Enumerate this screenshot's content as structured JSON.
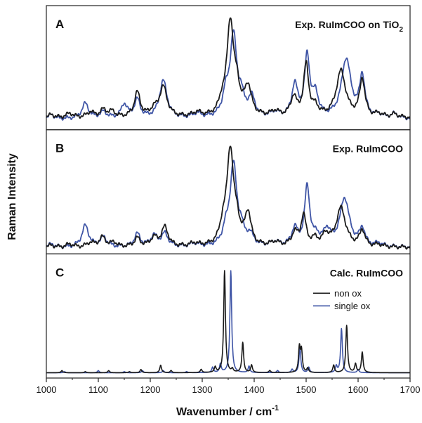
{
  "chart_data": {
    "type": "line",
    "xlabel": "Wavenumber / cm",
    "xlabel_superscript": "-1",
    "ylabel": "Raman Intensity",
    "xlim": [
      1000,
      1700
    ],
    "xticks": [
      1000,
      1100,
      1200,
      1300,
      1400,
      1500,
      1600,
      1700
    ],
    "colors": {
      "non_ox": "#1a1a1a",
      "single_ox": "#3f55a6"
    },
    "legend": {
      "placement": "panel C top-right",
      "entries": [
        "non ox",
        "single ox"
      ]
    },
    "panels": [
      {
        "letter": "A",
        "title": "Exp. RuImCOO on TiO",
        "title_subscript": "2",
        "kind": "experimental",
        "ylim": [
          0,
          1
        ],
        "series": [
          {
            "key": "non_ox",
            "baseline": 0.07,
            "peaks": [
              [
                1010,
                0.03,
                6
              ],
              [
                1045,
                0.04,
                8
              ],
              [
                1085,
                0.05,
                8
              ],
              [
                1110,
                0.07,
                8
              ],
              [
                1127,
                0.05,
                7
              ],
              [
                1175,
                0.23,
                7
              ],
              [
                1207,
                0.06,
                8
              ],
              [
                1225,
                0.28,
                9
              ],
              [
                1290,
                0.04,
                10
              ],
              [
                1338,
                0.1,
                7
              ],
              [
                1354,
                0.88,
                8
              ],
              [
                1367,
                0.2,
                6
              ],
              [
                1388,
                0.27,
                8
              ],
              [
                1440,
                0.05,
                10
              ],
              [
                1476,
                0.18,
                7
              ],
              [
                1500,
                0.48,
                6
              ],
              [
                1518,
                0.08,
                7
              ],
              [
                1567,
                0.43,
                11
              ],
              [
                1608,
                0.35,
                6
              ],
              [
                1640,
                0.03,
                8
              ],
              [
                1670,
                0.03,
                8
              ]
            ]
          },
          {
            "key": "single_ox",
            "baseline": 0.06,
            "peaks": [
              [
                1010,
                0.04,
                6
              ],
              [
                1075,
                0.14,
                8
              ],
              [
                1110,
                0.06,
                8
              ],
              [
                1150,
                0.13,
                7
              ],
              [
                1175,
                0.17,
                7
              ],
              [
                1225,
                0.35,
                9
              ],
              [
                1290,
                0.04,
                10
              ],
              [
                1345,
                0.18,
                7
              ],
              [
                1360,
                0.76,
                8
              ],
              [
                1375,
                0.15,
                6
              ],
              [
                1395,
                0.18,
                8
              ],
              [
                1440,
                0.05,
                10
              ],
              [
                1478,
                0.3,
                7
              ],
              [
                1502,
                0.56,
                6
              ],
              [
                1518,
                0.2,
                7
              ],
              [
                1577,
                0.55,
                11
              ],
              [
                1608,
                0.38,
                6
              ],
              [
                1640,
                0.03,
                8
              ],
              [
                1670,
                0.04,
                8
              ]
            ]
          }
        ]
      },
      {
        "letter": "B",
        "title": "Exp. RuImCOO",
        "title_subscript": "",
        "kind": "experimental",
        "ylim": [
          0,
          1
        ],
        "series": [
          {
            "key": "non_ox",
            "baseline": 0.02,
            "peaks": [
              [
                1010,
                0.02,
                6
              ],
              [
                1045,
                0.03,
                8
              ],
              [
                1085,
                0.04,
                8
              ],
              [
                1108,
                0.09,
                8
              ],
              [
                1130,
                0.04,
                7
              ],
              [
                1175,
                0.08,
                7
              ],
              [
                1207,
                0.08,
                8
              ],
              [
                1228,
                0.18,
                8
              ],
              [
                1285,
                0.03,
                10
              ],
              [
                1340,
                0.15,
                7
              ],
              [
                1354,
                0.89,
                8
              ],
              [
                1367,
                0.15,
                6
              ],
              [
                1388,
                0.3,
                7
              ],
              [
                1440,
                0.04,
                10
              ],
              [
                1478,
                0.12,
                7
              ],
              [
                1495,
                0.28,
                6
              ],
              [
                1517,
                0.06,
                7
              ],
              [
                1538,
                0.1,
                8
              ],
              [
                1567,
                0.36,
                11
              ],
              [
                1608,
                0.15,
                6
              ],
              [
                1640,
                0.02,
                8
              ]
            ]
          },
          {
            "key": "single_ox",
            "baseline": 0.02,
            "peaks": [
              [
                1010,
                0.03,
                6
              ],
              [
                1075,
                0.2,
                8
              ],
              [
                1110,
                0.09,
                8
              ],
              [
                1175,
                0.12,
                7
              ],
              [
                1207,
                0.1,
                8
              ],
              [
                1228,
                0.12,
                8
              ],
              [
                1285,
                0.03,
                10
              ],
              [
                1345,
                0.12,
                7
              ],
              [
                1360,
                0.76,
                8
              ],
              [
                1375,
                0.12,
                6
              ],
              [
                1392,
                0.1,
                8
              ],
              [
                1440,
                0.04,
                10
              ],
              [
                1478,
                0.16,
                7
              ],
              [
                1502,
                0.55,
                6
              ],
              [
                1520,
                0.08,
                7
              ],
              [
                1540,
                0.14,
                8
              ],
              [
                1574,
                0.45,
                11
              ],
              [
                1608,
                0.16,
                6
              ],
              [
                1640,
                0.03,
                8
              ]
            ]
          }
        ]
      },
      {
        "letter": "C",
        "title": "Calc. RuImCOO",
        "title_subscript": "",
        "kind": "calculated",
        "ylim": [
          0,
          1
        ],
        "series": [
          {
            "key": "non_ox",
            "name": "non ox",
            "baseline": 0.01,
            "peaks": [
              [
                1030,
                0.02,
                2
              ],
              [
                1075,
                0.01,
                2
              ],
              [
                1120,
                0.02,
                2
              ],
              [
                1160,
                0.01,
                2
              ],
              [
                1182,
                0.03,
                2
              ],
              [
                1220,
                0.07,
                2
              ],
              [
                1240,
                0.02,
                2
              ],
              [
                1298,
                0.03,
                2
              ],
              [
                1325,
                0.05,
                2
              ],
              [
                1343,
                0.95,
                2
              ],
              [
                1358,
                0.03,
                2
              ],
              [
                1378,
                0.28,
                2
              ],
              [
                1395,
                0.07,
                2
              ],
              [
                1430,
                0.02,
                2
              ],
              [
                1487,
                0.23,
                2
              ],
              [
                1491,
                0.2,
                2
              ],
              [
                1503,
                0.04,
                2
              ],
              [
                1553,
                0.07,
                2
              ],
              [
                1578,
                0.44,
                2
              ],
              [
                1595,
                0.08,
                2
              ],
              [
                1608,
                0.19,
                2
              ]
            ]
          },
          {
            "key": "single_ox",
            "name": "single ox",
            "baseline": 0.01,
            "peaks": [
              [
                1035,
                0.01,
                2
              ],
              [
                1100,
                0.02,
                2
              ],
              [
                1150,
                0.01,
                2
              ],
              [
                1185,
                0.02,
                2
              ],
              [
                1225,
                0.02,
                2
              ],
              [
                1270,
                0.01,
                2
              ],
              [
                1320,
                0.05,
                2
              ],
              [
                1335,
                0.08,
                2
              ],
              [
                1355,
                0.95,
                2
              ],
              [
                1390,
                0.06,
                2
              ],
              [
                1445,
                0.02,
                2
              ],
              [
                1473,
                0.03,
                2
              ],
              [
                1488,
                0.24,
                2
              ],
              [
                1505,
                0.05,
                2
              ],
              [
                1558,
                0.06,
                2
              ],
              [
                1568,
                0.41,
                2
              ],
              [
                1600,
                0.03,
                2
              ]
            ]
          }
        ]
      }
    ]
  }
}
